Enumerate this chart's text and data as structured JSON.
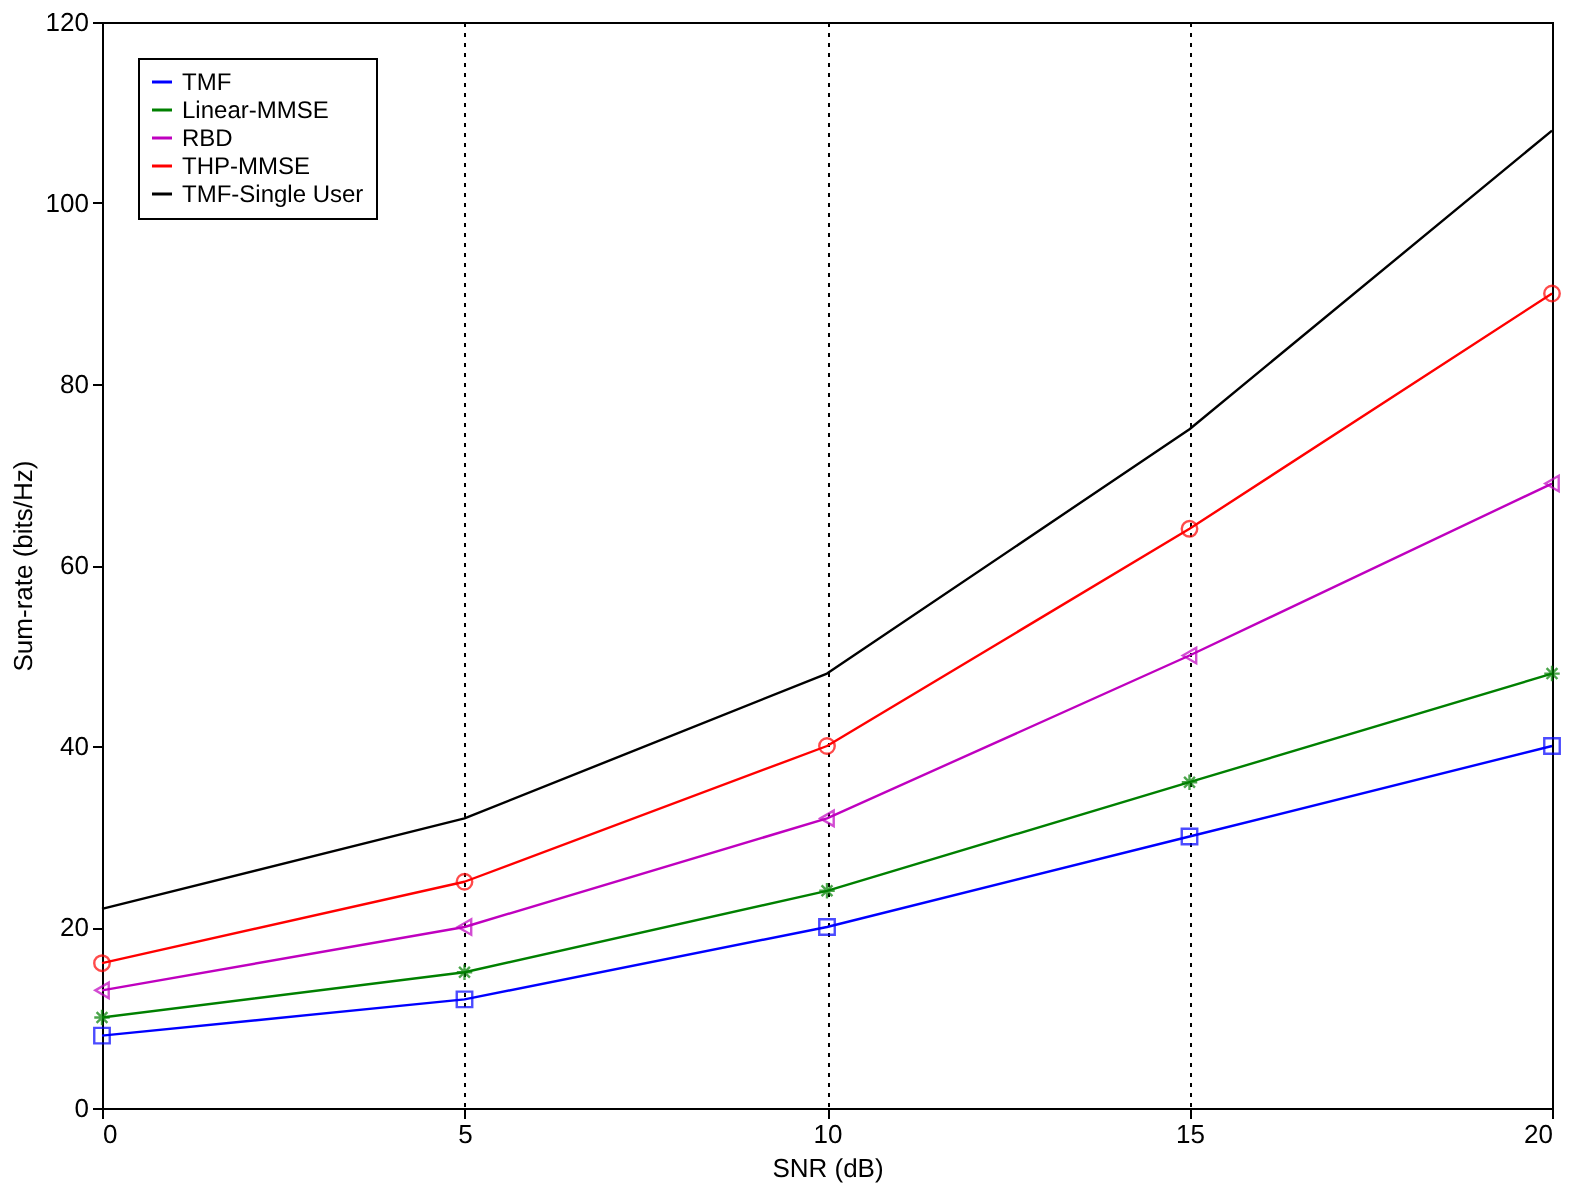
{
  "chart_data": {
    "type": "line",
    "xlabel": "SNR (dB)",
    "ylabel": "Sum-rate (bits/Hz)",
    "x": [
      0,
      5,
      10,
      15,
      20
    ],
    "xlim": [
      0,
      20
    ],
    "xticks": [
      0,
      5,
      10,
      15,
      20
    ],
    "ylim": [
      0,
      120
    ],
    "yticks": [
      0,
      20,
      40,
      60,
      80,
      100,
      120
    ],
    "grid": "x",
    "legend": "top left",
    "line_style": "solid",
    "series": [
      {
        "name": "TMF",
        "color": "#0000ff",
        "marker": "square",
        "values": [
          8,
          12,
          20,
          30,
          40
        ]
      },
      {
        "name": "Linear-MMSE",
        "color": "#008000",
        "marker": "cross",
        "values": [
          10,
          15,
          24,
          36,
          48
        ]
      },
      {
        "name": "RBD",
        "color": "#bf00bf",
        "marker": "triangle",
        "values": [
          13,
          20,
          32,
          50,
          69
        ]
      },
      {
        "name": "THP-MMSE",
        "color": "#ff0000",
        "marker": "circle",
        "values": [
          16,
          25,
          40,
          64,
          90
        ]
      },
      {
        "name": "TMF-Single User",
        "color": "#000000",
        "marker": "none",
        "values": [
          22,
          32,
          48,
          75,
          108
        ]
      }
    ]
  }
}
